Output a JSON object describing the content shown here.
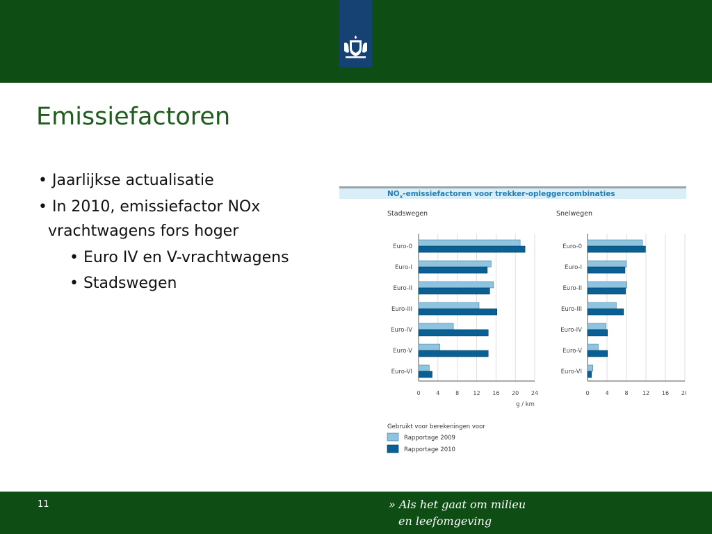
{
  "slide": {
    "title": "Emissiefactoren",
    "bullets": [
      "• Jaarlijkse actualisatie",
      "• In 2010, emissiefactor NOx",
      "vrachtwagens fors hoger",
      "• Euro IV en V-vrachtwagens",
      "• Stadswegen"
    ],
    "page_number": "11",
    "slogan_line1": "» Als het gaat om milieu",
    "slogan_line2": "en leefomgeving"
  },
  "colors": {
    "header_green": "#0e4e14",
    "logo_blue": "#154273",
    "series_2009": "#8fc4e0",
    "series_2010": "#0a5f94",
    "title_band": "#daeef8"
  },
  "icons": {
    "logo": "rijksoverheid-coat-of-arms-icon"
  },
  "chart_data": {
    "type": "bar",
    "title": "NOx-emissiefactoren voor trekker-opleggercombinaties",
    "title_prefix": "NO",
    "title_sub": "x",
    "title_suffix": "-emissiefactoren voor trekker-opleggercombinaties",
    "unit_label": "g / km",
    "legend_title": "Gebruikt voor berekeningen voor",
    "legend_placement": "bottom-left",
    "categories": [
      "Euro-0",
      "Euro-I",
      "Euro-II",
      "Euro-III",
      "Euro-IV",
      "Euro-V",
      "Euro-VI"
    ],
    "panels": [
      {
        "name": "Stadswegen",
        "xlim": [
          0,
          24
        ],
        "ticks": [
          0,
          4,
          8,
          12,
          16,
          20,
          24
        ],
        "tick_labels": [
          "0",
          "4",
          "8",
          "12",
          "16",
          "20",
          "24"
        ],
        "series": [
          {
            "name": "Rapportage 2009",
            "values": [
              21,
              15,
              15.5,
              12.5,
              7.2,
              4.4,
              2.2
            ]
          },
          {
            "name": "Rapportage 2010",
            "values": [
              22,
              14.2,
              14.7,
              16.2,
              14.4,
              14.4,
              2.8
            ]
          }
        ]
      },
      {
        "name": "Snelwegen",
        "xlim": [
          0,
          20
        ],
        "ticks": [
          0,
          4,
          8,
          12,
          16,
          20
        ],
        "tick_labels": [
          "0",
          "4",
          "8",
          "12",
          "16",
          "20"
        ],
        "series": [
          {
            "name": "Rapportage 2009",
            "values": [
              11.3,
              8,
              8.1,
              5.9,
              3.8,
              2.2,
              1.1
            ]
          },
          {
            "name": "Rapportage 2010",
            "values": [
              11.9,
              7.7,
              7.8,
              7.4,
              4.1,
              4.1,
              0.8
            ]
          }
        ]
      }
    ]
  }
}
